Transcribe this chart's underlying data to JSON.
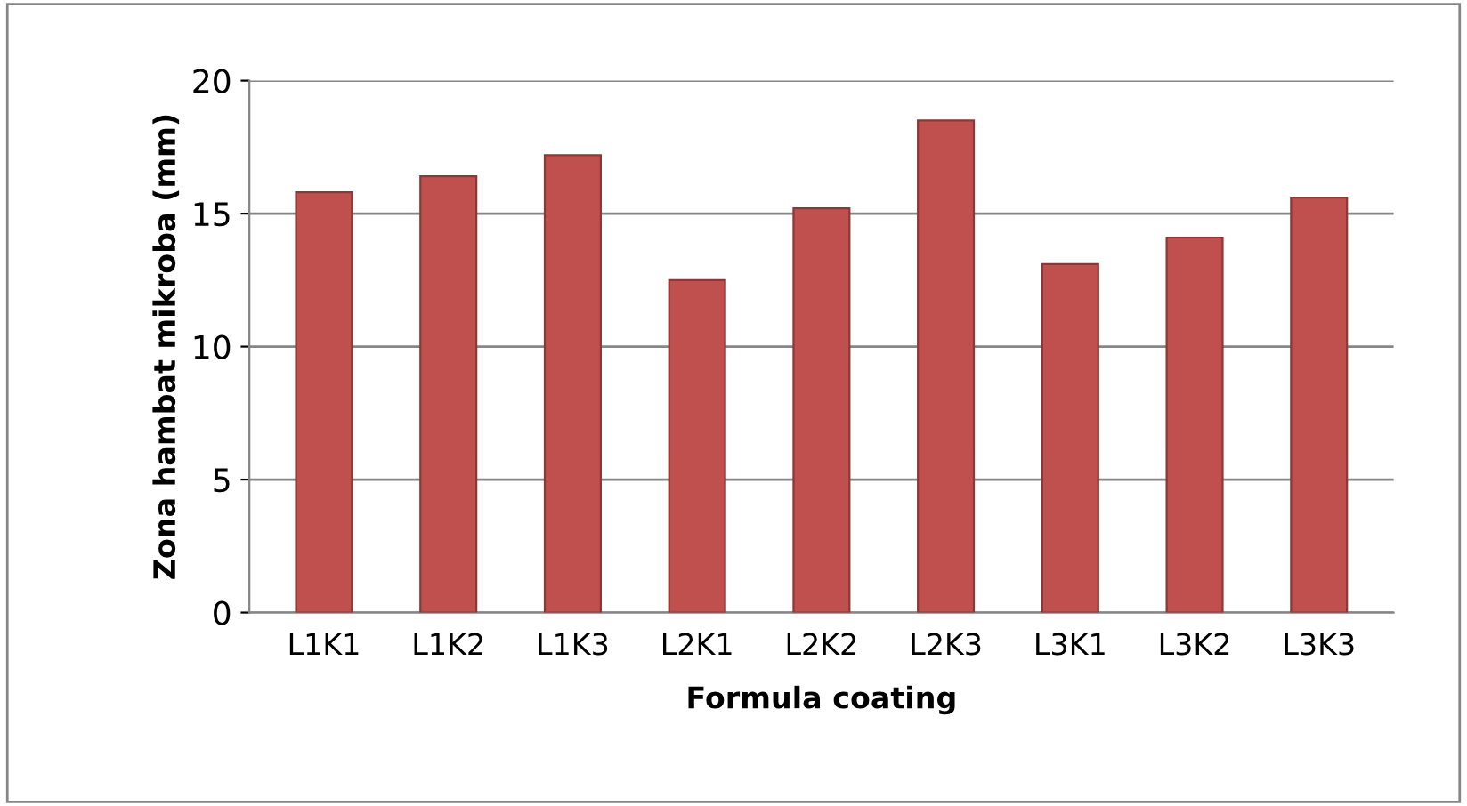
{
  "chart_data": {
    "type": "bar",
    "xlabel": "Formula coating",
    "ylabel": "Zona hambat mikroba (mm)",
    "categories": [
      "L1K1",
      "L1K2",
      "L1K3",
      "L2K1",
      "L2K2",
      "L2K3",
      "L3K1",
      "L3K2",
      "L3K3"
    ],
    "values": [
      15.8,
      16.4,
      17.2,
      12.5,
      15.2,
      18.5,
      13.1,
      14.1,
      15.6
    ],
    "color": "#c0504d",
    "ylim": [
      0,
      20
    ],
    "yticks": [
      0,
      5,
      10,
      15,
      20
    ],
    "grid": "y",
    "legend": false
  }
}
